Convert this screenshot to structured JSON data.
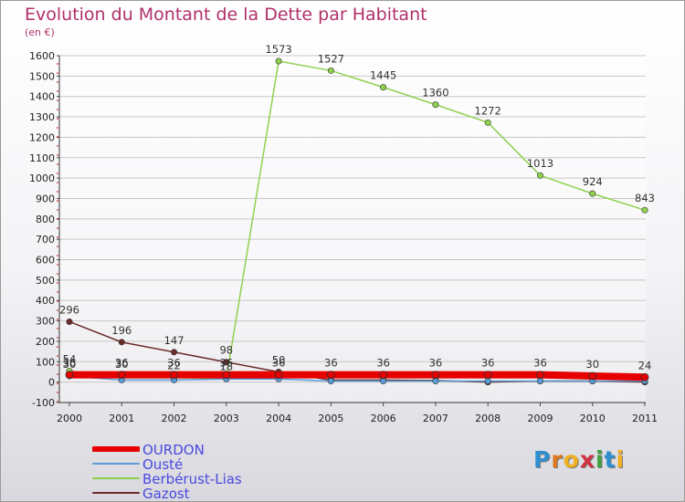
{
  "chart_data": {
    "type": "line",
    "title": "Evolution du Montant de la Dette par Habitant",
    "ylabel": "(en €)",
    "xlabel": "",
    "ylim": [
      -100,
      1600
    ],
    "yticks": [
      -100,
      0,
      100,
      200,
      300,
      400,
      500,
      600,
      700,
      800,
      900,
      1000,
      1100,
      1200,
      1300,
      1400,
      1500,
      1600
    ],
    "x": [
      "2000",
      "2001",
      "2002",
      "2003",
      "2004",
      "2005",
      "2006",
      "2007",
      "2008",
      "2009",
      "2010",
      "2011"
    ],
    "series": [
      {
        "name": "OURDON",
        "color": "#e60000",
        "values": [
          36,
          36,
          36,
          36,
          36,
          36,
          36,
          36,
          36,
          36,
          30,
          24
        ]
      },
      {
        "name": "Ousté",
        "color": "#5a9bd4",
        "values": [
          30,
          10,
          10,
          15,
          15,
          5,
          5,
          5,
          5,
          5,
          5,
          5
        ]
      },
      {
        "name": "Berbérust-Lias",
        "color": "#8fd14f",
        "values": [
          54,
          30,
          22,
          18,
          1573,
          1527,
          1445,
          1360,
          1272,
          1013,
          924,
          843
        ]
      },
      {
        "name": "Gazost",
        "color": "#6b2a2a",
        "values": [
          296,
          196,
          147,
          98,
          50,
          10,
          10,
          8,
          0,
          5,
          5,
          0
        ]
      }
    ],
    "labels": [
      {
        "text": "296",
        "series": 3,
        "i": 0
      },
      {
        "text": "196",
        "series": 3,
        "i": 1
      },
      {
        "text": "147",
        "series": 3,
        "i": 2
      },
      {
        "text": "98",
        "series": 3,
        "i": 3
      },
      {
        "text": "1573",
        "series": 2,
        "i": 4
      },
      {
        "text": "1527",
        "series": 2,
        "i": 5
      },
      {
        "text": "1445",
        "series": 2,
        "i": 6
      },
      {
        "text": "1360",
        "series": 2,
        "i": 7
      },
      {
        "text": "1272",
        "series": 2,
        "i": 8
      },
      {
        "text": "1013",
        "series": 2,
        "i": 9
      },
      {
        "text": "924",
        "series": 2,
        "i": 10
      },
      {
        "text": "843",
        "series": 2,
        "i": 11
      },
      {
        "text": "54",
        "series": 2,
        "i": 0
      },
      {
        "text": "36",
        "series": 0,
        "i": 0
      },
      {
        "text": "30",
        "series": 1,
        "i": 0
      },
      {
        "text": "36",
        "series": 0,
        "i": 1
      },
      {
        "text": "30",
        "series": 2,
        "i": 1
      },
      {
        "text": "36",
        "series": 0,
        "i": 2
      },
      {
        "text": "22",
        "series": 2,
        "i": 2
      },
      {
        "text": "36",
        "series": 0,
        "i": 3
      },
      {
        "text": "18",
        "series": 2,
        "i": 3
      },
      {
        "text": "36",
        "series": 0,
        "i": 4
      },
      {
        "text": "50",
        "series": 3,
        "i": 4
      },
      {
        "text": "36",
        "series": 0,
        "i": 5
      },
      {
        "text": "36",
        "series": 0,
        "i": 6
      },
      {
        "text": "36",
        "series": 0,
        "i": 7
      },
      {
        "text": "36",
        "series": 0,
        "i": 8
      },
      {
        "text": "36",
        "series": 0,
        "i": 9
      },
      {
        "text": "30",
        "series": 0,
        "i": 10
      },
      {
        "text": "24",
        "series": 0,
        "i": 11
      }
    ]
  },
  "legend": {
    "items": [
      {
        "label": "OURDON",
        "color": "#e60000"
      },
      {
        "label": "Ousté",
        "color": "#5a9bd4"
      },
      {
        "label": "Berbérust-Lias",
        "color": "#8fd14f"
      },
      {
        "label": "Gazost",
        "color": "#6b2a2a"
      }
    ]
  },
  "logo": {
    "letters": [
      "P",
      "r",
      "o",
      "x",
      "i",
      "t",
      "i"
    ],
    "colors": [
      "#2e8fd0",
      "#e07820",
      "#f0b020",
      "#d03040",
      "#40a040",
      "#2e8fd0",
      "#f0b020"
    ]
  }
}
